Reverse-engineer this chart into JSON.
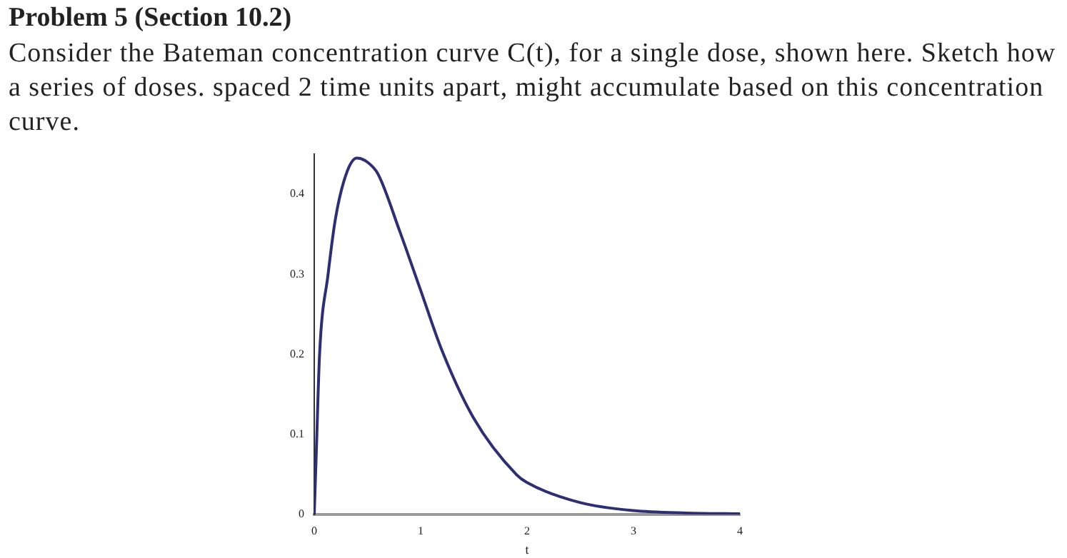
{
  "chart_data": {
    "type": "line",
    "title": "Problem 5 (Section 10.2)",
    "subtitle": "Consider the Bateman concentration curve C(t), for a single dose, shown here. Sketch how a series of doses. spaced 2 time units apart, might accumulate based on this concentration curve.",
    "xlabel": "t",
    "series": [
      {
        "color": "#2e2e72",
        "x": [
          0,
          0.02,
          0.05,
          0.13,
          0.2,
          0.3,
          0.4,
          0.5,
          0.6,
          0.8,
          1.0,
          1.2,
          1.5,
          1.9,
          2.0,
          2.5,
          3.0,
          3.5,
          4.0
        ],
        "values": [
          0,
          0.08,
          0.2,
          0.3,
          0.37,
          0.425,
          0.445,
          0.44,
          0.425,
          0.355,
          0.28,
          0.205,
          0.12,
          0.05,
          0.04,
          0.015,
          0.005,
          0.002,
          0.001
        ]
      }
    ],
    "xlim": [
      0,
      4
    ],
    "xticks": [
      0,
      1,
      2,
      3,
      4
    ],
    "ylim": [
      0,
      0.45
    ],
    "yticks": [
      0,
      0.1,
      0.2,
      0.3,
      0.4
    ],
    "grid": false,
    "legend": false,
    "marker": "none",
    "line_style": "solid"
  }
}
